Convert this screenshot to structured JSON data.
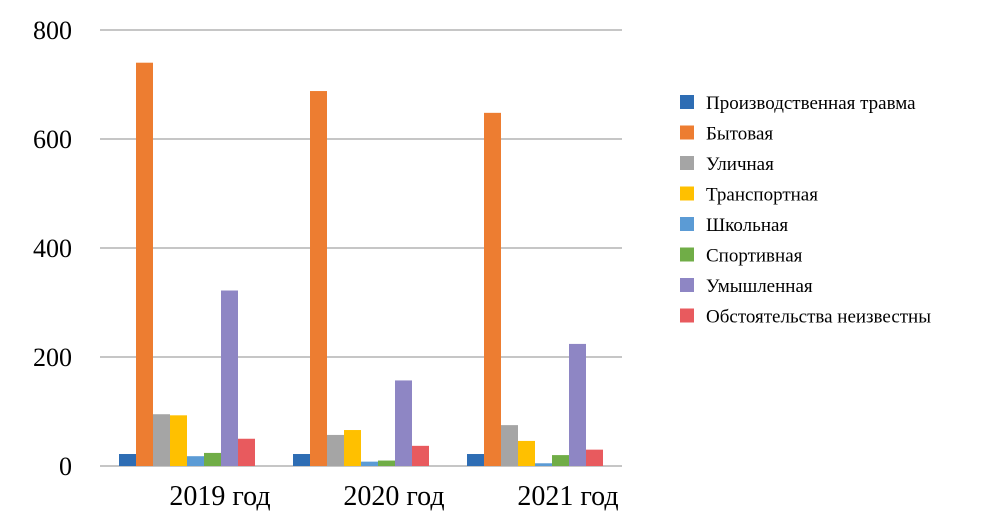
{
  "chart_data": {
    "type": "bar",
    "categories": [
      "2019 год",
      "2020 год",
      "2021 год"
    ],
    "series": [
      {
        "name": "Производственная травма",
        "color": "#2E6DB4",
        "values": [
          22,
          22,
          22
        ]
      },
      {
        "name": "Бытовая",
        "color": "#ED7D31",
        "values": [
          740,
          688,
          648
        ]
      },
      {
        "name": "Уличная",
        "color": "#A5A5A5",
        "values": [
          95,
          57,
          75
        ]
      },
      {
        "name": "Транспортная",
        "color": "#FFC000",
        "values": [
          93,
          66,
          46
        ]
      },
      {
        "name": "Школьная",
        "color": "#5B9BD5",
        "values": [
          18,
          8,
          5
        ]
      },
      {
        "name": "Спортивная",
        "color": "#70AD47",
        "values": [
          24,
          10,
          20
        ]
      },
      {
        "name": "Умышленная",
        "color": "#8E86C4",
        "values": [
          322,
          157,
          224
        ]
      },
      {
        "name": "Обстоятельства неизвестны",
        "color": "#E85A5E",
        "values": [
          50,
          37,
          30
        ]
      }
    ],
    "ylim": [
      0,
      800
    ],
    "yticks": [
      "0",
      "200",
      "400",
      "600",
      "800"
    ],
    "grid": true,
    "legend": "right"
  }
}
